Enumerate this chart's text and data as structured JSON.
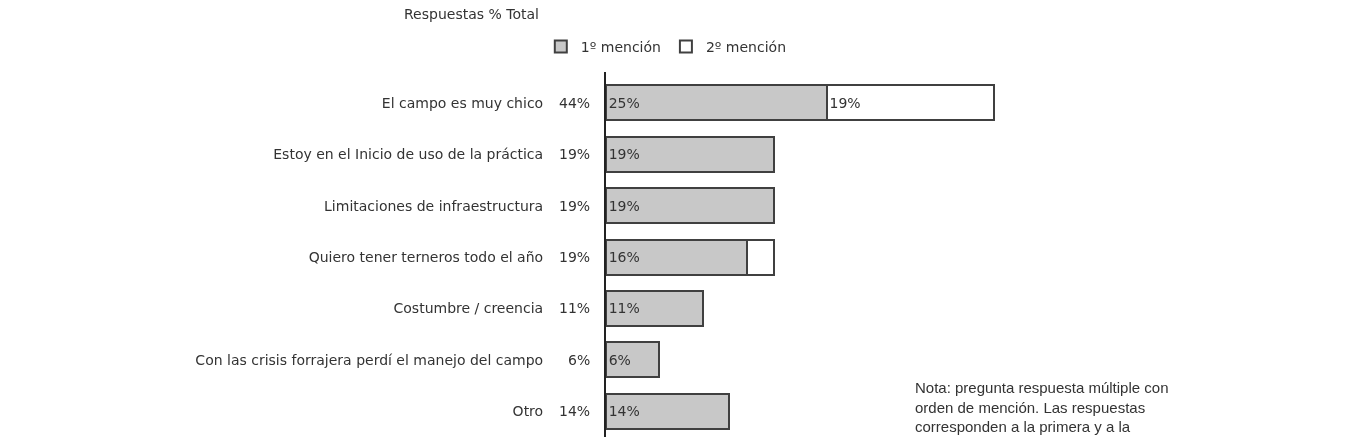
{
  "chart_data": {
    "type": "bar",
    "orientation": "horizontal",
    "stacked": true,
    "title": "Respuestas % Total",
    "categories": [
      "El campo es muy chico",
      "Estoy en el Inicio de uso de la práctica",
      "Limitaciones de infraestructura",
      "Quiero tener terneros todo el año",
      "Costumbre / creencia",
      "Con las crisis forrajera perdí el manejo del campo",
      "Otro"
    ],
    "series": [
      {
        "name": "1º mención",
        "color": "#c8c8c8",
        "values": [
          25,
          19,
          19,
          16,
          11,
          6,
          14
        ],
        "value_labels": [
          "25%",
          "19%",
          "19%",
          "16%",
          "11%",
          "6%",
          "14%"
        ]
      },
      {
        "name": "2º mención",
        "color": "#ffffff",
        "values": [
          19,
          null,
          null,
          3,
          null,
          null,
          null
        ],
        "value_labels": [
          "19%",
          null,
          null,
          null,
          null,
          null,
          null
        ]
      }
    ],
    "totals": [
      "44%",
      "19%",
      "19%",
      "19%",
      "11%",
      "6%",
      "14%"
    ],
    "annotations": [
      "Nota: pregunta respuesta múltiple con orden de mención. Las respuestas corresponden a la primera y a la"
    ],
    "legend": "top"
  }
}
